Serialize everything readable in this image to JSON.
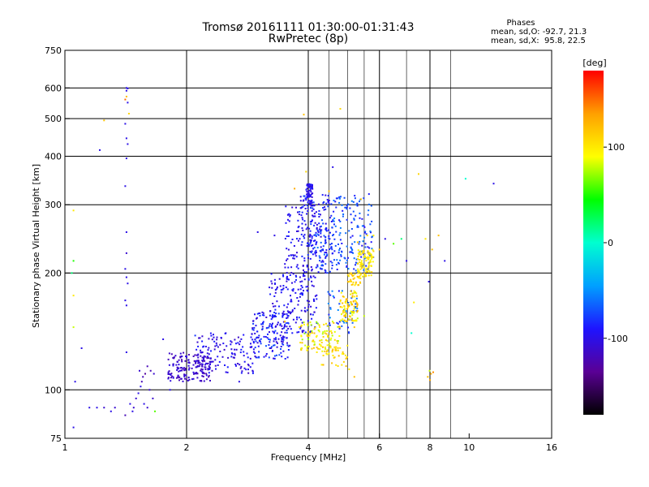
{
  "header": {
    "title_line1": "Tromsø 20161111 01:30:00-01:31:43",
    "title_line2": "RwPretec (8p)"
  },
  "stats": {
    "heading": "Phases",
    "line1": "mean, sd,O: -92.7, 21.3",
    "line2": "mean, sd,X:  95.8, 22.5"
  },
  "colorbar": {
    "label": "[deg]",
    "ticks": [
      {
        "value": 100,
        "label": "100"
      },
      {
        "value": 0,
        "label": "0"
      },
      {
        "value": -100,
        "label": "-100"
      }
    ],
    "range": [
      -180,
      180
    ],
    "colors": [
      "#000000",
      "#5a0095",
      "#1e14ff",
      "#00a0ff",
      "#00ffd0",
      "#00ff00",
      "#ffff00",
      "#ffa000",
      "#ff0000"
    ]
  },
  "chart_data": {
    "type": "scatter",
    "title": "Tromsø 20161111 01:30:00-01:31:43",
    "subtitle": "RwPretec (8p)",
    "xlabel": "Frequency [MHz]",
    "ylabel": "Stationary phase Virtual Height [km]",
    "xscale": "log",
    "yscale": "log",
    "xlim": [
      1,
      16
    ],
    "ylim": [
      75,
      750
    ],
    "x_ticks": [
      {
        "value": 1,
        "label": "1"
      },
      {
        "value": 2,
        "label": "2"
      },
      {
        "value": 4,
        "label": "4"
      },
      {
        "value": 6,
        "label": "6"
      },
      {
        "value": 8,
        "label": "8"
      },
      {
        "value": 10,
        "label": "10"
      },
      {
        "value": 16,
        "label": "16"
      }
    ],
    "x_major_grid": [
      2,
      4,
      6,
      8
    ],
    "x_minor_grid": [
      4.5,
      5,
      5.5,
      7,
      9
    ],
    "y_ticks": [
      {
        "value": 750,
        "label": "750"
      },
      {
        "value": 600,
        "label": "600"
      },
      {
        "value": 500,
        "label": "500"
      },
      {
        "value": 400,
        "label": "400"
      },
      {
        "value": 300,
        "label": "300"
      },
      {
        "value": 200,
        "label": "200"
      },
      {
        "value": 100,
        "label": "100"
      },
      {
        "value": 75,
        "label": "75"
      }
    ],
    "y_grid": [
      600,
      500,
      400,
      300,
      200,
      100
    ],
    "grid": true,
    "color_variable": "phase [deg]",
    "points": [
      [
        1.05,
        80,
        -100
      ],
      [
        1.06,
        105,
        -100
      ],
      [
        1.1,
        128,
        -100
      ],
      [
        1.04,
        200,
        20
      ],
      [
        1.05,
        215,
        50
      ],
      [
        1.05,
        290,
        100
      ],
      [
        1.05,
        175,
        100
      ],
      [
        1.05,
        145,
        80
      ],
      [
        1.15,
        90,
        -100
      ],
      [
        1.2,
        90,
        -100
      ],
      [
        1.25,
        90,
        -110
      ],
      [
        1.3,
        88,
        -100
      ],
      [
        1.33,
        90,
        -110
      ],
      [
        1.22,
        415,
        -100
      ],
      [
        1.25,
        495,
        120
      ],
      [
        1.42,
        600,
        -100
      ],
      [
        1.43,
        598,
        -100
      ],
      [
        1.42,
        590,
        -100
      ],
      [
        1.41,
        560,
        150
      ],
      [
        1.42,
        570,
        120
      ],
      [
        1.43,
        550,
        -100
      ],
      [
        1.44,
        515,
        110
      ],
      [
        1.41,
        485,
        -100
      ],
      [
        1.42,
        445,
        -100
      ],
      [
        1.43,
        430,
        -100
      ],
      [
        1.42,
        395,
        -100
      ],
      [
        1.41,
        335,
        -100
      ],
      [
        1.42,
        255,
        -100
      ],
      [
        1.42,
        225,
        -110
      ],
      [
        1.41,
        205,
        -100
      ],
      [
        1.42,
        195,
        -100
      ],
      [
        1.43,
        188,
        -100
      ],
      [
        1.41,
        170,
        -100
      ],
      [
        1.42,
        165,
        -100
      ],
      [
        1.42,
        125,
        -100
      ],
      [
        1.41,
        86,
        -120
      ],
      [
        1.45,
        92,
        -100
      ],
      [
        1.47,
        88,
        -100
      ],
      [
        1.5,
        95,
        -110
      ],
      [
        1.52,
        98,
        -100
      ],
      [
        1.55,
        105,
        -120
      ],
      [
        1.58,
        110,
        -130
      ],
      [
        1.6,
        115,
        -120
      ],
      [
        1.53,
        112,
        -110
      ],
      [
        1.56,
        108,
        -120
      ],
      [
        1.62,
        100,
        -110
      ],
      [
        1.65,
        95,
        -110
      ],
      [
        1.57,
        92,
        -100
      ],
      [
        1.6,
        90,
        -110
      ],
      [
        1.63,
        112,
        -120
      ],
      [
        1.66,
        110,
        -110
      ],
      [
        1.67,
        88,
        60
      ],
      [
        1.48,
        90,
        -110
      ],
      [
        1.54,
        102,
        -100
      ],
      [
        1.82,
        100,
        -100
      ],
      [
        1.75,
        135,
        -100
      ],
      [
        2.0,
        122,
        -100
      ],
      [
        2.1,
        138,
        -80
      ],
      [
        2.5,
        140,
        -100
      ],
      [
        2.7,
        105,
        -100
      ],
      [
        3.0,
        255,
        -100
      ],
      [
        1.9,
        118,
        -110
      ],
      [
        3.5,
        150,
        120
      ],
      [
        3.6,
        130,
        -100
      ],
      [
        3.8,
        145,
        100
      ],
      [
        3.85,
        160,
        -100
      ],
      [
        3.95,
        365,
        110
      ],
      [
        3.7,
        330,
        130
      ],
      [
        3.9,
        512,
        120
      ],
      [
        4.05,
        250,
        -100
      ],
      [
        4.2,
        125,
        100
      ],
      [
        4.4,
        140,
        110
      ],
      [
        4.5,
        325,
        120
      ],
      [
        4.6,
        375,
        -100
      ],
      [
        4.8,
        530,
        110
      ],
      [
        5.0,
        130,
        100
      ],
      [
        5.2,
        145,
        120
      ],
      [
        5.5,
        155,
        80
      ],
      [
        4.3,
        205,
        -100
      ],
      [
        3.3,
        250,
        -100
      ],
      [
        3.6,
        280,
        -100
      ],
      [
        6.2,
        245,
        -100
      ],
      [
        6.5,
        238,
        60
      ],
      [
        6.8,
        245,
        20
      ],
      [
        7.0,
        215,
        -100
      ],
      [
        7.3,
        168,
        100
      ],
      [
        7.2,
        140,
        0
      ],
      [
        7.5,
        360,
        110
      ],
      [
        7.8,
        245,
        100
      ],
      [
        8.1,
        230,
        120
      ],
      [
        8.4,
        250,
        120
      ],
      [
        8.7,
        215,
        -100
      ],
      [
        9.8,
        350,
        0
      ],
      [
        11.5,
        340,
        -100
      ],
      [
        7.95,
        190,
        -100
      ],
      [
        7.9,
        108,
        120
      ],
      [
        7.98,
        112,
        80
      ],
      [
        8.05,
        110,
        130
      ],
      [
        8.15,
        111,
        140
      ],
      [
        8.0,
        106,
        130
      ],
      [
        6.0,
        230,
        120
      ],
      [
        5.8,
        250,
        100
      ],
      [
        4.9,
        118,
        110
      ],
      [
        5.2,
        108,
        120
      ],
      [
        5.05,
        113,
        100
      ],
      [
        5.3,
        240,
        120
      ],
      [
        5.6,
        250,
        100
      ],
      [
        5.4,
        310,
        120
      ]
    ],
    "clusters": [
      {
        "x": [
          1.8,
          2.3
        ],
        "y": [
          105,
          125
        ],
        "phase": [
          -125,
          -100
        ],
        "n": 170
      },
      {
        "x": [
          2.1,
          3.0
        ],
        "y": [
          110,
          140
        ],
        "phase": [
          -115,
          -85
        ],
        "n": 130
      },
      {
        "x": [
          2.9,
          3.6
        ],
        "y": [
          120,
          160
        ],
        "phase": [
          -110,
          -70
        ],
        "n": 150
      },
      {
        "x": [
          3.2,
          4.2
        ],
        "y": [
          140,
          200
        ],
        "phase": [
          -110,
          -80
        ],
        "n": 170
      },
      {
        "x": [
          3.5,
          4.3
        ],
        "y": [
          200,
          300
        ],
        "phase": [
          -110,
          -85
        ],
        "n": 120
      },
      {
        "x": [
          3.8,
          4.6
        ],
        "y": [
          215,
          320
        ],
        "phase": [
          -105,
          -70
        ],
        "n": 110
      },
      {
        "x": [
          3.95,
          4.1
        ],
        "y": [
          300,
          340
        ],
        "phase": [
          -110,
          -85
        ],
        "n": 60
      },
      {
        "x": [
          4.1,
          4.6
        ],
        "y": [
          200,
          260
        ],
        "phase": [
          -100,
          -60
        ],
        "n": 60
      },
      {
        "x": [
          4.6,
          5.8
        ],
        "y": [
          200,
          320
        ],
        "phase": [
          -95,
          -55
        ],
        "n": 160
      },
      {
        "x": [
          4.4,
          5.3
        ],
        "y": [
          140,
          180
        ],
        "phase": [
          -90,
          -50
        ],
        "n": 50
      },
      {
        "x": [
          3.8,
          4.8
        ],
        "y": [
          125,
          150
        ],
        "phase": [
          70,
          125
        ],
        "n": 110
      },
      {
        "x": [
          4.8,
          5.3
        ],
        "y": [
          150,
          180
        ],
        "phase": [
          80,
          130
        ],
        "n": 90
      },
      {
        "x": [
          5.3,
          5.8
        ],
        "y": [
          195,
          230
        ],
        "phase": [
          90,
          115
        ],
        "n": 90
      },
      {
        "x": [
          5.0,
          5.4
        ],
        "y": [
          185,
          200
        ],
        "phase": [
          95,
          130
        ],
        "n": 30
      },
      {
        "x": [
          4.3,
          5.0
        ],
        "y": [
          115,
          130
        ],
        "phase": [
          90,
          125
        ],
        "n": 30
      }
    ]
  }
}
